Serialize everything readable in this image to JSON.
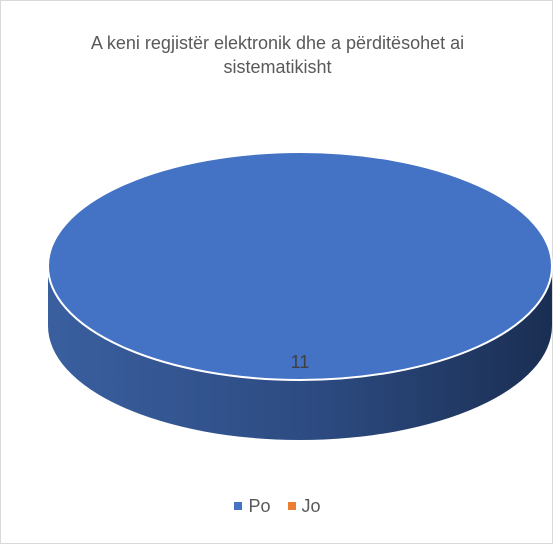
{
  "chart_data": {
    "type": "pie",
    "title_lines": [
      "A keni regjistër  elektronik dhe a përditësohet ai",
      "sistematikisht"
    ],
    "categories": [
      "Po",
      "Jo"
    ],
    "values": [
      11,
      0
    ],
    "colors": [
      "#4472c4",
      "#ed7d31"
    ],
    "data_labels": [
      "11"
    ],
    "legend_position": "bottom",
    "style": "3d"
  }
}
